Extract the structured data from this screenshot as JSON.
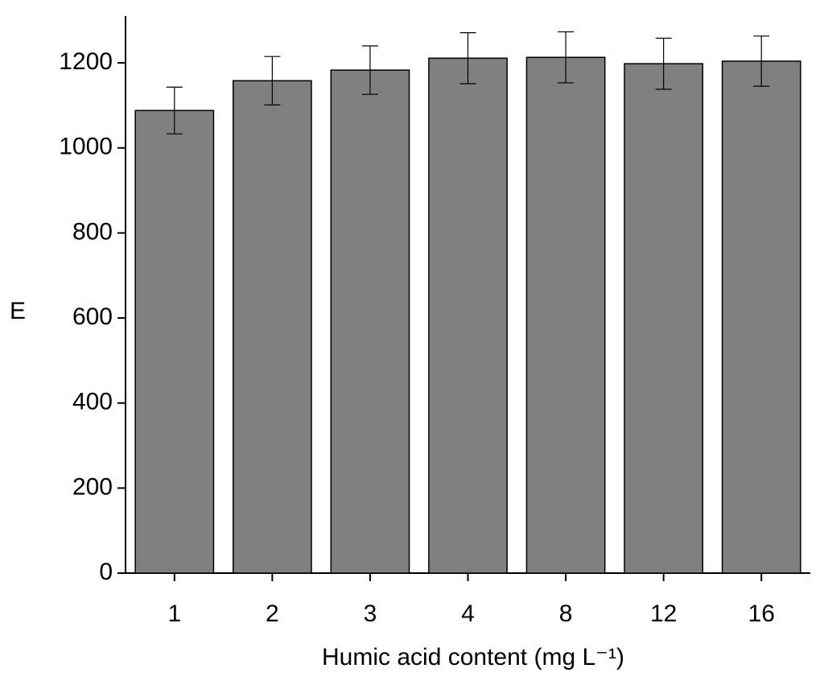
{
  "chart_data": {
    "type": "bar",
    "xlabel": "Humic acid content (mg L⁻¹)",
    "ylabel": "E",
    "categories": [
      "1",
      "2",
      "3",
      "4",
      "8",
      "12",
      "16"
    ],
    "values": [
      1088,
      1158,
      1183,
      1211,
      1213,
      1198,
      1204
    ],
    "errors": [
      55,
      57,
      57,
      60,
      60,
      60,
      59
    ],
    "color": "#808080",
    "ylim": [
      0,
      1310
    ],
    "yticks": [
      0,
      200,
      400,
      600,
      800,
      1000,
      1200
    ],
    "grid": false
  }
}
